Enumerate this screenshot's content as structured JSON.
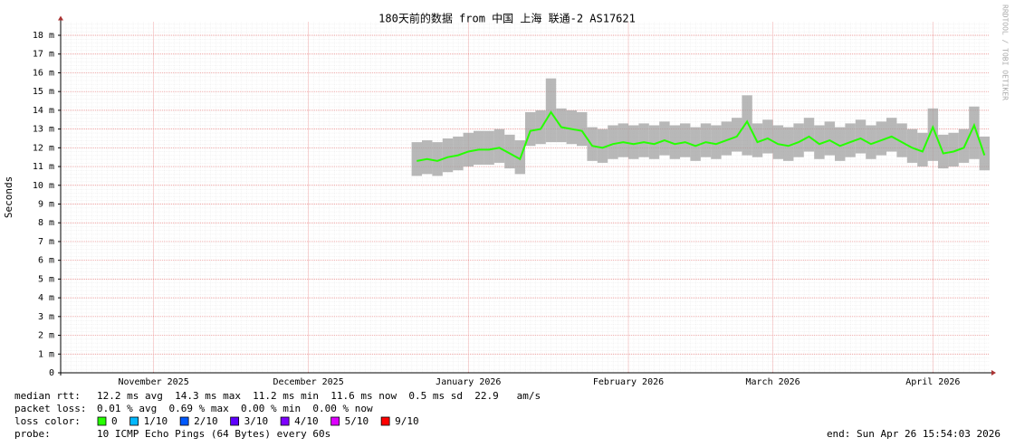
{
  "chart_data": {
    "type": "smoke",
    "title": "180天前的数据 from 中国 上海 联通-2 AS17621",
    "y_label": "Seconds",
    "watermark": "RRDTOOL / TOBI OETIKER",
    "xlim": [
      0,
      180
    ],
    "xticks": [
      {
        "value": 18,
        "label": "November 2025"
      },
      {
        "value": 48,
        "label": "December 2025"
      },
      {
        "value": 79,
        "label": "January 2026"
      },
      {
        "value": 110,
        "label": "February 2026"
      },
      {
        "value": 138,
        "label": "March 2026"
      },
      {
        "value": 169,
        "label": "April 2026"
      }
    ],
    "ylim": [
      0,
      0.0187
    ],
    "yticks": [
      0,
      {
        "value": 0.001,
        "label": "1 m"
      },
      {
        "value": 0.002,
        "label": "2 m"
      },
      {
        "value": 0.003,
        "label": "3 m"
      },
      {
        "value": 0.004,
        "label": "4 m"
      },
      {
        "value": 0.005,
        "label": "5 m"
      },
      {
        "value": 0.006,
        "label": "6 m"
      },
      {
        "value": 0.007,
        "label": "7 m"
      },
      {
        "value": 0.008,
        "label": "8 m"
      },
      {
        "value": 0.009,
        "label": "9 m"
      },
      {
        "value": 0.01,
        "label": "10 m"
      },
      {
        "value": 0.011,
        "label": "11 m"
      },
      {
        "value": 0.012,
        "label": "12 m"
      },
      {
        "value": 0.013,
        "label": "13 m"
      },
      {
        "value": 0.014,
        "label": "14 m"
      },
      {
        "value": 0.015,
        "label": "15 m"
      },
      {
        "value": 0.016,
        "label": "16 m"
      },
      {
        "value": 0.017,
        "label": "17 m"
      },
      {
        "value": 0.018,
        "label": "18 m"
      }
    ],
    "grid": true,
    "median_color": "#26ff00",
    "smoke_color": "#a0a0a0",
    "x": [
      69,
      71,
      73,
      75,
      77,
      79,
      81,
      83,
      85,
      87,
      89,
      91,
      93,
      95,
      97,
      99,
      101,
      103,
      105,
      107,
      109,
      111,
      113,
      115,
      117,
      119,
      121,
      123,
      125,
      127,
      129,
      131,
      133,
      135,
      137,
      139,
      141,
      143,
      145,
      147,
      149,
      151,
      153,
      155,
      157,
      159,
      161,
      163,
      165,
      167,
      169,
      171,
      173,
      175,
      177,
      179
    ],
    "median": [
      0.0113,
      0.0114,
      0.0113,
      0.0115,
      0.0116,
      0.0118,
      0.0119,
      0.0119,
      0.012,
      0.0117,
      0.0114,
      0.0129,
      0.013,
      0.0139,
      0.0131,
      0.013,
      0.0129,
      0.0121,
      0.012,
      0.0122,
      0.0123,
      0.0122,
      0.0123,
      0.0122,
      0.0124,
      0.0122,
      0.0123,
      0.0121,
      0.0123,
      0.0122,
      0.0124,
      0.0126,
      0.0134,
      0.0123,
      0.0125,
      0.0122,
      0.0121,
      0.0123,
      0.0126,
      0.0122,
      0.0124,
      0.0121,
      0.0123,
      0.0125,
      0.0122,
      0.0124,
      0.0126,
      0.0123,
      0.012,
      0.0118,
      0.0131,
      0.0117,
      0.0118,
      0.012,
      0.0132,
      0.0116
    ],
    "smoke_low": [
      0.0105,
      0.0106,
      0.0105,
      0.0107,
      0.0108,
      0.011,
      0.0111,
      0.0111,
      0.0112,
      0.0109,
      0.0106,
      0.0121,
      0.0122,
      0.0123,
      0.0123,
      0.0122,
      0.0121,
      0.0113,
      0.0112,
      0.0114,
      0.0115,
      0.0114,
      0.0115,
      0.0114,
      0.0116,
      0.0114,
      0.0115,
      0.0113,
      0.0115,
      0.0114,
      0.0116,
      0.0118,
      0.0116,
      0.0115,
      0.0117,
      0.0114,
      0.0113,
      0.0115,
      0.0118,
      0.0114,
      0.0116,
      0.0113,
      0.0115,
      0.0117,
      0.0114,
      0.0116,
      0.0118,
      0.0115,
      0.0112,
      0.011,
      0.0113,
      0.0109,
      0.011,
      0.0112,
      0.0114,
      0.0108
    ],
    "smoke_high": [
      0.0123,
      0.0124,
      0.0123,
      0.0125,
      0.0126,
      0.0128,
      0.0129,
      0.0129,
      0.013,
      0.0127,
      0.0124,
      0.0139,
      0.014,
      0.0157,
      0.0141,
      0.014,
      0.0139,
      0.0131,
      0.013,
      0.0132,
      0.0133,
      0.0132,
      0.0133,
      0.0132,
      0.0134,
      0.0132,
      0.0133,
      0.0131,
      0.0133,
      0.0132,
      0.0134,
      0.0136,
      0.0148,
      0.0133,
      0.0135,
      0.0132,
      0.0131,
      0.0133,
      0.0136,
      0.0132,
      0.0134,
      0.0131,
      0.0133,
      0.0135,
      0.0132,
      0.0134,
      0.0136,
      0.0133,
      0.013,
      0.0128,
      0.0141,
      0.0127,
      0.0128,
      0.013,
      0.0142,
      0.0126
    ],
    "stats": [
      {
        "label": "median rtt:",
        "text": "12.2 ms avg  14.3 ms max  11.2 ms min  11.6 ms now  0.5 ms sd  22.9   am/s"
      },
      {
        "label": "packet loss:",
        "text": "0.01 % avg  0.69 % max  0.00 % min  0.00 % now"
      }
    ],
    "loss_legend": {
      "label": "loss color:",
      "items": [
        {
          "name": "0",
          "color": "#26ff00"
        },
        {
          "name": "1/10",
          "color": "#00b8ff"
        },
        {
          "name": "2/10",
          "color": "#0059ff"
        },
        {
          "name": "3/10",
          "color": "#5e00ff"
        },
        {
          "name": "4/10",
          "color": "#7e00ff"
        },
        {
          "name": "5/10",
          "color": "#dd00ff"
        },
        {
          "name": "9/10",
          "color": "#ff0000"
        }
      ]
    },
    "probe": {
      "label": "probe:",
      "text": "10 ICMP Echo Pings (64 Bytes) every 60s",
      "end": "end: Sun Apr 26 15:54:03 2026"
    }
  }
}
